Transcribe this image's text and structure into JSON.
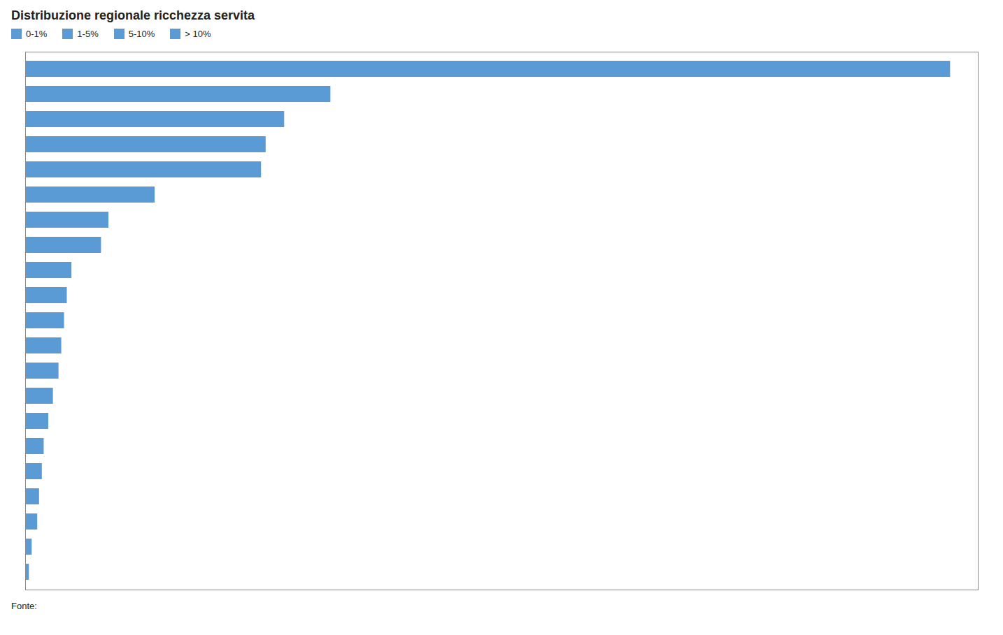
{
  "chart_data": {
    "type": "bar",
    "orientation": "horizontal",
    "title": "Distribuzione regionale ricchezza servita",
    "values": [
      100.0,
      33.0,
      28.0,
      26.0,
      25.5,
      14.0,
      9.0,
      8.2,
      5.0,
      4.5,
      4.2,
      3.9,
      3.6,
      3.0,
      2.5,
      2.0,
      1.8,
      1.5,
      1.3,
      0.7,
      0.4
    ],
    "color": "#5b9bd5",
    "xlim": [
      0,
      103.0
    ],
    "tick_labels": false,
    "grid": false,
    "legend": "upper left",
    "legend_labels": [
      "0-1%",
      "1-5%",
      "5-10%",
      "> 10%"
    ],
    "annotations": [
      "Fonte:"
    ]
  }
}
